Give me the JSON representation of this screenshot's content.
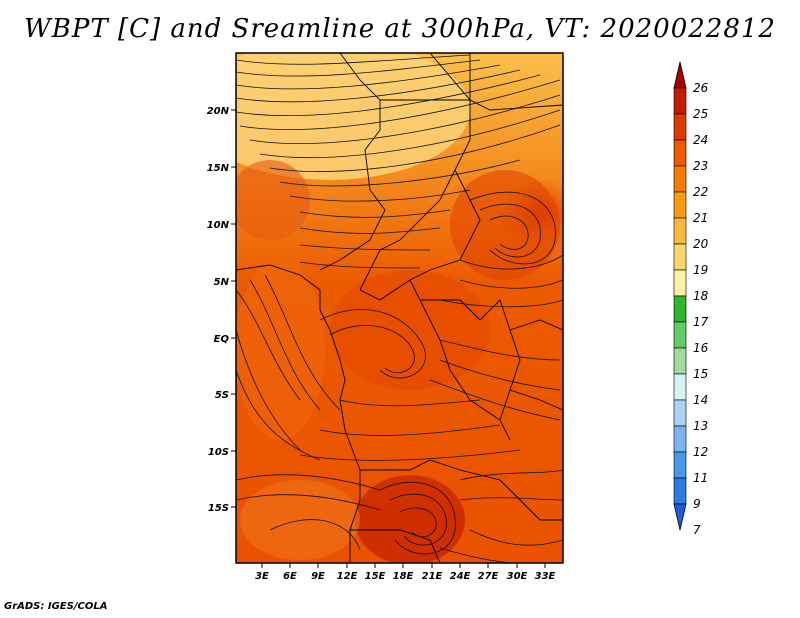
{
  "title": "WBPT [C] and Sreamline at 300hPa, VT: 2020022812",
  "footer": "GrADS: IGES/COLA",
  "lat_labels": [
    "20N",
    "15N",
    "10N",
    "5N",
    "EQ",
    "5S",
    "10S",
    "15S"
  ],
  "lon_labels": [
    "3E",
    "6E",
    "9E",
    "12E",
    "15E",
    "18E",
    "21E",
    "24E",
    "27E",
    "30E",
    "33E"
  ],
  "colorbar": {
    "labels": [
      "26",
      "25",
      "24",
      "23",
      "22",
      "21",
      "20",
      "19",
      "18",
      "17",
      "16",
      "15",
      "14",
      "13",
      "12",
      "11",
      "9",
      "7"
    ],
    "colors": [
      "#a50000",
      "#c41c00",
      "#dc3a00",
      "#ee5a00",
      "#f57a00",
      "#f99a10",
      "#fbb83a",
      "#fcd56e",
      "#fdf0a8",
      "#2fb52f",
      "#63c963",
      "#9edc9e",
      "#d6f2f2",
      "#a9d3f5",
      "#7ab6f0",
      "#4a98ea",
      "#2a7ae0",
      "#1a60d8"
    ]
  },
  "map": {
    "region": "Central Africa",
    "field": "Wet-bulb potential temperature with streamlines at 300hPa"
  }
}
